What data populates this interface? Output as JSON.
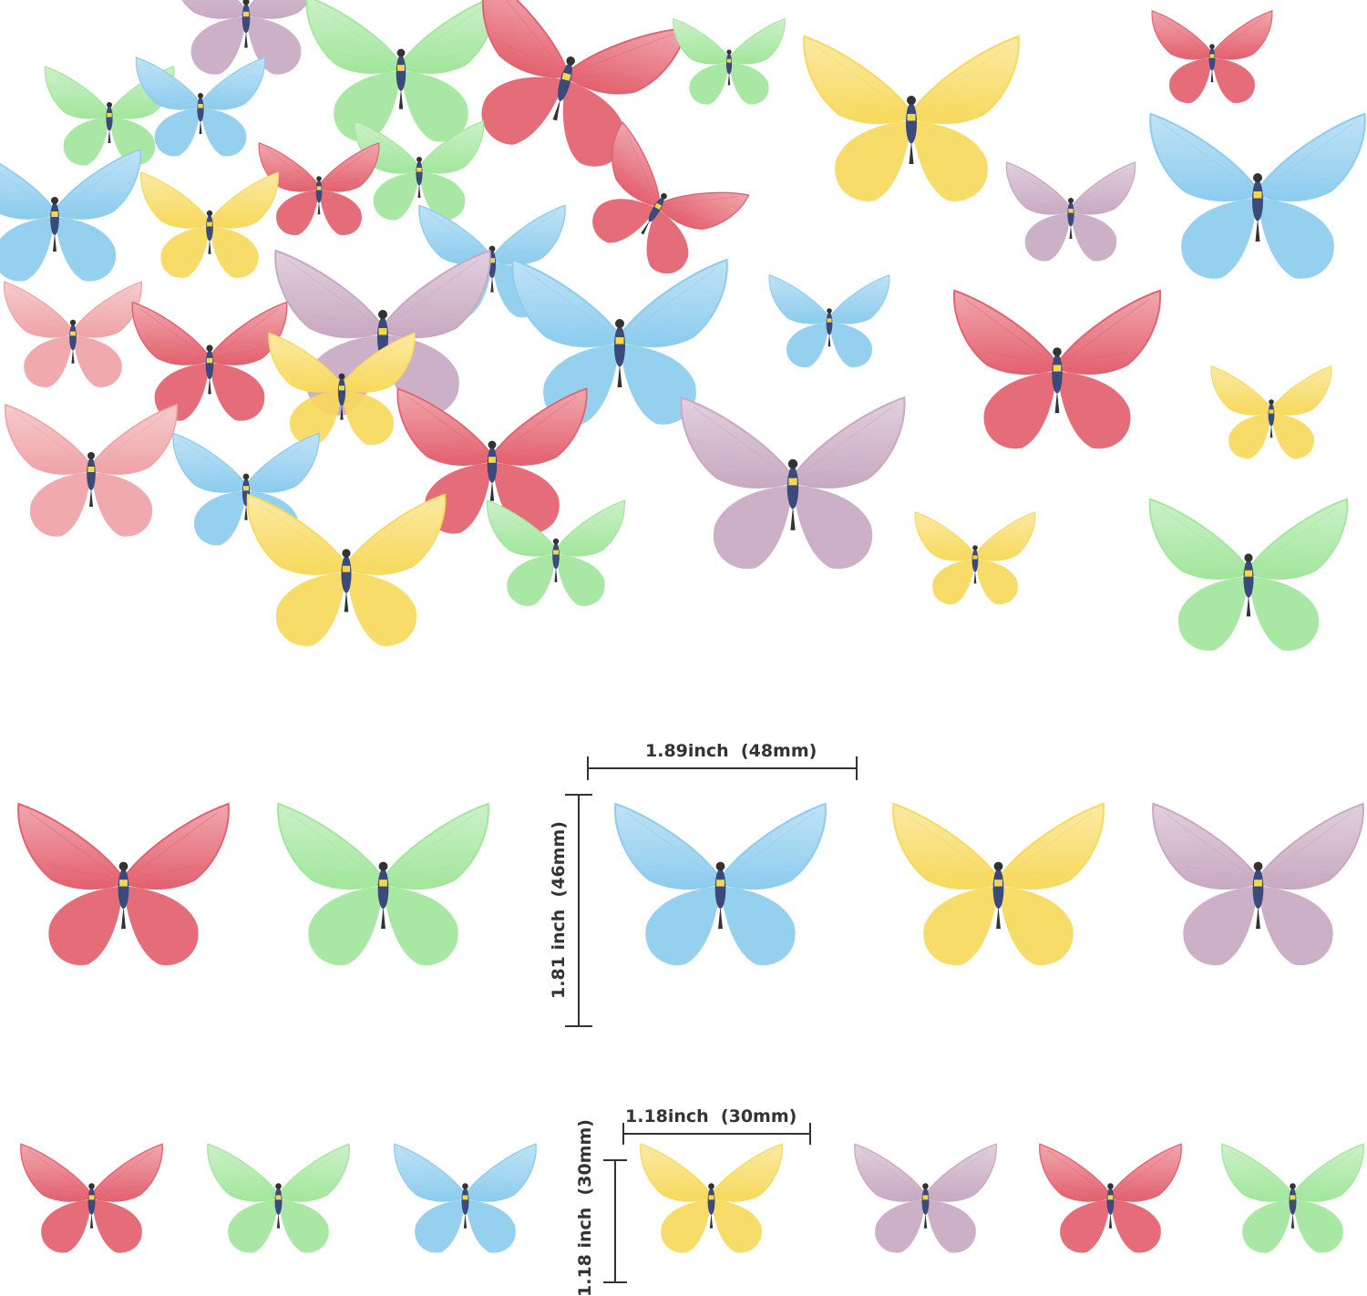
{
  "colors": {
    "red": "#e3616e",
    "pink": "#efa3a6",
    "green": "#a2e69c",
    "blue": "#8dccee",
    "yellow": "#f7d95c",
    "purple": "#c8a9c2",
    "outline": "#333333"
  },
  "dimensions": {
    "large_width": "1.89inch  (48mm)",
    "large_height": "1.81 inch  (46mm)",
    "small_width": "1.18inch  (30mm)",
    "small_height": "1.18 inch  (30mm)"
  },
  "rows": {
    "large_colors": [
      "red",
      "green",
      "blue",
      "yellow",
      "purple"
    ],
    "small_colors": [
      "red",
      "green",
      "blue",
      "yellow",
      "purple",
      "red",
      "green"
    ]
  }
}
